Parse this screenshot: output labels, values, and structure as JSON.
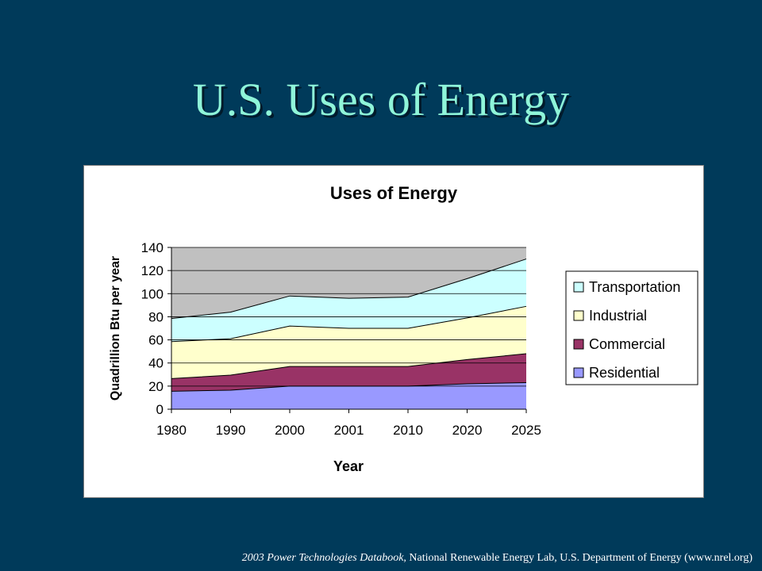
{
  "slide": {
    "title": "U.S. Uses of Energy"
  },
  "footer": {
    "source_italic": "2003 Power Technologies Databook",
    "source_rest": ", National Renewable Energy Lab, U.S. Department of Energy (www.nrel.org)"
  },
  "chart_data": {
    "type": "area",
    "stacked": true,
    "title": "Uses of Energy",
    "xlabel": "Year",
    "ylabel": "Quadrillion Btu per year",
    "categories": [
      "1980",
      "1990",
      "2000",
      "2001",
      "2010",
      "2020",
      "2025"
    ],
    "ylim": [
      0,
      140
    ],
    "yticks": [
      0,
      20,
      40,
      60,
      80,
      100,
      120,
      140
    ],
    "grid": true,
    "legend_position": "right",
    "plot_background": "#c0c0c0",
    "series": [
      {
        "name": "Residential",
        "color": "#9999ff",
        "values": [
          15.5,
          16.5,
          20,
          20,
          20,
          22,
          23
        ]
      },
      {
        "name": "Commercial",
        "color": "#993366",
        "values": [
          11,
          13,
          17,
          17,
          17,
          21,
          25
        ]
      },
      {
        "name": "Industrial",
        "color": "#ffffcc",
        "values": [
          32,
          31.5,
          35,
          33,
          33,
          36,
          41
        ]
      },
      {
        "name": "Transportation",
        "color": "#ccffff",
        "values": [
          20,
          23,
          26,
          26,
          27,
          34,
          41
        ]
      }
    ],
    "legend_order": [
      "Transportation",
      "Industrial",
      "Commercial",
      "Residential"
    ]
  }
}
